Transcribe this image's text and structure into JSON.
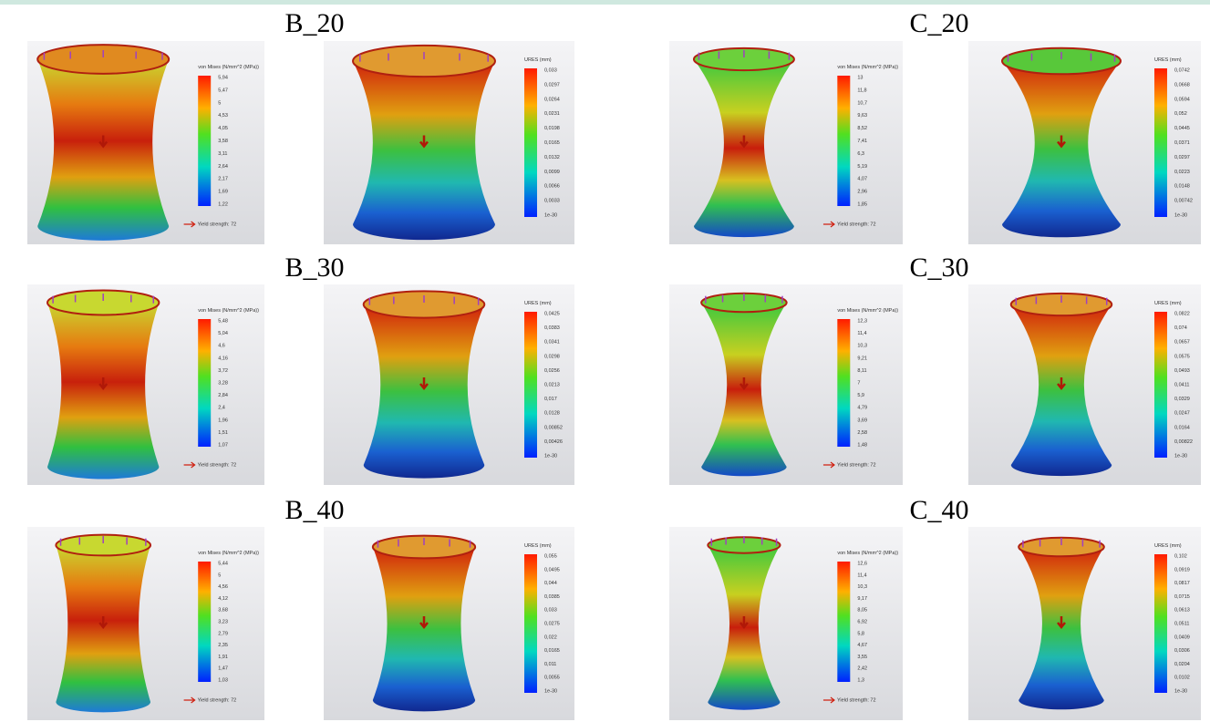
{
  "panels": [
    {
      "label": "B_20",
      "stress": {
        "legend_title": "von Mises (N/mm^2 (MPa))",
        "legend_values": [
          "5,94",
          "5,47",
          "5",
          "4,53",
          "4,05",
          "3,58",
          "3,11",
          "2,64",
          "2,17",
          "1,69",
          "1,22"
        ],
        "yield_label": "Yield strength: 72"
      },
      "displacement": {
        "legend_title": "URES (mm)",
        "legend_values": [
          "0,033",
          "0,0297",
          "0,0264",
          "0,0231",
          "0,0198",
          "0,0165",
          "0,0132",
          "0,0099",
          "0,0066",
          "0,0033",
          "1e-30"
        ]
      }
    },
    {
      "label": "C_20",
      "stress": {
        "legend_title": "von Mises (N/mm^2 (MPa))",
        "legend_values": [
          "13",
          "11,8",
          "10,7",
          "9,63",
          "8,52",
          "7,41",
          "6,3",
          "5,19",
          "4,07",
          "2,96",
          "1,85"
        ],
        "yield_label": "Yield strength: 72"
      },
      "displacement": {
        "legend_title": "URES (mm)",
        "legend_values": [
          "0,0742",
          "0,0668",
          "0,0594",
          "0,052",
          "0,0445",
          "0,0371",
          "0,0297",
          "0,0223",
          "0,0148",
          "0,00742",
          "1e-30"
        ]
      }
    },
    {
      "label": "B_30",
      "stress": {
        "legend_title": "von Mises (N/mm^2 (MPa))",
        "legend_values": [
          "5,48",
          "5,04",
          "4,6",
          "4,16",
          "3,72",
          "3,28",
          "2,84",
          "2,4",
          "1,96",
          "1,51",
          "1,07"
        ],
        "yield_label": "Yield strength: 72"
      },
      "displacement": {
        "legend_title": "URES (mm)",
        "legend_values": [
          "0,0425",
          "0,0383",
          "0,0341",
          "0,0298",
          "0,0256",
          "0,0213",
          "0,017",
          "0,0128",
          "0,00852",
          "0,00426",
          "1e-30"
        ]
      }
    },
    {
      "label": "C_30",
      "stress": {
        "legend_title": "von Mises (N/mm^2 (MPa))",
        "legend_values": [
          "12,3",
          "11,4",
          "10,3",
          "9,21",
          "8,11",
          "7",
          "5,9",
          "4,79",
          "3,69",
          "2,58",
          "1,48"
        ],
        "yield_label": "Yield strength: 72"
      },
      "displacement": {
        "legend_title": "URES (mm)",
        "legend_values": [
          "0,0822",
          "0,074",
          "0,0657",
          "0,0575",
          "0,0493",
          "0,0411",
          "0,0329",
          "0,0247",
          "0,0164",
          "0,00822",
          "1e-30"
        ]
      }
    },
    {
      "label": "B_40",
      "stress": {
        "legend_title": "von Mises (N/mm^2 (MPa))",
        "legend_values": [
          "5,44",
          "5",
          "4,56",
          "4,12",
          "3,68",
          "3,23",
          "2,79",
          "2,35",
          "1,91",
          "1,47",
          "1,03"
        ],
        "yield_label": "Yield strength: 72"
      },
      "displacement": {
        "legend_title": "URES (mm)",
        "legend_values": [
          "0,055",
          "0,0495",
          "0,044",
          "0,0385",
          "0,033",
          "0,0275",
          "0,022",
          "0,0165",
          "0,011",
          "0,0055",
          "1e-30"
        ]
      }
    },
    {
      "label": "C_40",
      "stress": {
        "legend_title": "von Mises (N/mm^2 (MPa))",
        "legend_values": [
          "12,6",
          "11,4",
          "10,3",
          "9,17",
          "8,05",
          "6,92",
          "5,8",
          "4,67",
          "3,55",
          "2,42",
          "1,3"
        ],
        "yield_label": "Yield strength: 72"
      },
      "displacement": {
        "legend_title": "URES (mm)",
        "legend_values": [
          "0,102",
          "0,0919",
          "0,0817",
          "0,0715",
          "0,0613",
          "0,0511",
          "0,0409",
          "0,0306",
          "0,0204",
          "0,0102",
          "1e-30"
        ]
      }
    }
  ]
}
